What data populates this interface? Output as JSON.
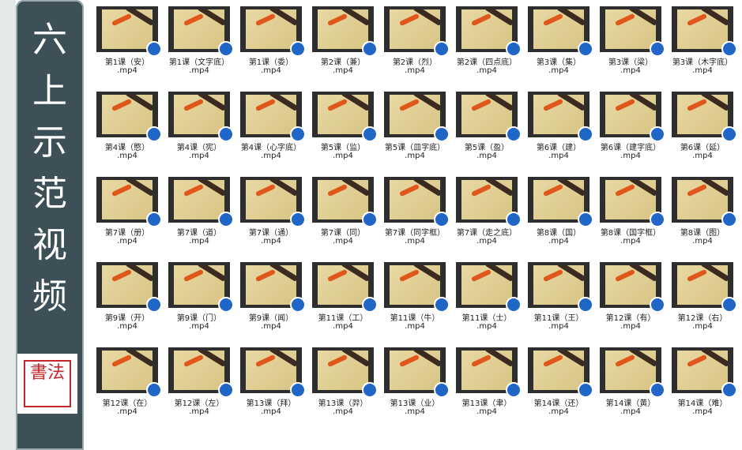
{
  "sidebar": {
    "title": "六上示范视频",
    "seal": "書法"
  },
  "files": [
    [
      {
        "name": "第1课（安）",
        "ext": ".mp4"
      },
      {
        "name": "第1课（文字底）",
        "ext": ".mp4"
      },
      {
        "name": "第1课（委）",
        "ext": ".mp4"
      },
      {
        "name": "第2课（兼）",
        "ext": ".mp4"
      },
      {
        "name": "第2课（烈）",
        "ext": ".mp4"
      },
      {
        "name": "第2课（四点底）",
        "ext": ".mp4"
      },
      {
        "name": "第3课（集）",
        "ext": ".mp4"
      },
      {
        "name": "第3课（梁）",
        "ext": ".mp4"
      },
      {
        "name": "第3课（木字底）",
        "ext": ".mp4"
      }
    ],
    [
      {
        "name": "第4课（愍）",
        "ext": ".mp4"
      },
      {
        "name": "第4课（宪）",
        "ext": ".mp4"
      },
      {
        "name": "第4课（心字底）",
        "ext": ".mp4"
      },
      {
        "name": "第5课（监）",
        "ext": ".mp4"
      },
      {
        "name": "第5课（皿字底）",
        "ext": ".mp4"
      },
      {
        "name": "第5课（盈）",
        "ext": ".mp4"
      },
      {
        "name": "第6课（建）",
        "ext": ".mp4"
      },
      {
        "name": "第6课（建字底）",
        "ext": ".mp4"
      },
      {
        "name": "第6课（延）",
        "ext": ".mp4"
      }
    ],
    [
      {
        "name": "第7课（册）",
        "ext": ".mp4"
      },
      {
        "name": "第7课（道）",
        "ext": ".mp4"
      },
      {
        "name": "第7课（通）",
        "ext": ".mp4"
      },
      {
        "name": "第7课（同）",
        "ext": ".mp4"
      },
      {
        "name": "第7课（同字框）",
        "ext": ".mp4"
      },
      {
        "name": "第7课（走之底）",
        "ext": ".mp4"
      },
      {
        "name": "第8课（国）",
        "ext": ".mp4"
      },
      {
        "name": "第8课（国字框）",
        "ext": ".mp4"
      },
      {
        "name": "第8课（图）",
        "ext": ".mp4"
      }
    ],
    [
      {
        "name": "第9课（开）",
        "ext": ".mp4"
      },
      {
        "name": "第9课（门）",
        "ext": ".mp4"
      },
      {
        "name": "第9课（闻）",
        "ext": ".mp4"
      },
      {
        "name": "第11课（工）",
        "ext": ".mp4"
      },
      {
        "name": "第11课（牛）",
        "ext": ".mp4"
      },
      {
        "name": "第11课（士）",
        "ext": ".mp4"
      },
      {
        "name": "第11课（王）",
        "ext": ".mp4"
      },
      {
        "name": "第12课（有）",
        "ext": ".mp4"
      },
      {
        "name": "第12课（右）",
        "ext": ".mp4"
      }
    ],
    [
      {
        "name": "第12课（在）",
        "ext": ".mp4"
      },
      {
        "name": "第12课（左）",
        "ext": ".mp4"
      },
      {
        "name": "第13课（拜）",
        "ext": ".mp4"
      },
      {
        "name": "第13课（羿）",
        "ext": ".mp4"
      },
      {
        "name": "第13课（业）",
        "ext": ".mp4"
      },
      {
        "name": "第13课（聿）",
        "ext": ".mp4"
      },
      {
        "name": "第14课（还）",
        "ext": ".mp4"
      },
      {
        "name": "第14课（黄）",
        "ext": ".mp4"
      },
      {
        "name": "第14课（难）",
        "ext": ".mp4"
      }
    ]
  ]
}
